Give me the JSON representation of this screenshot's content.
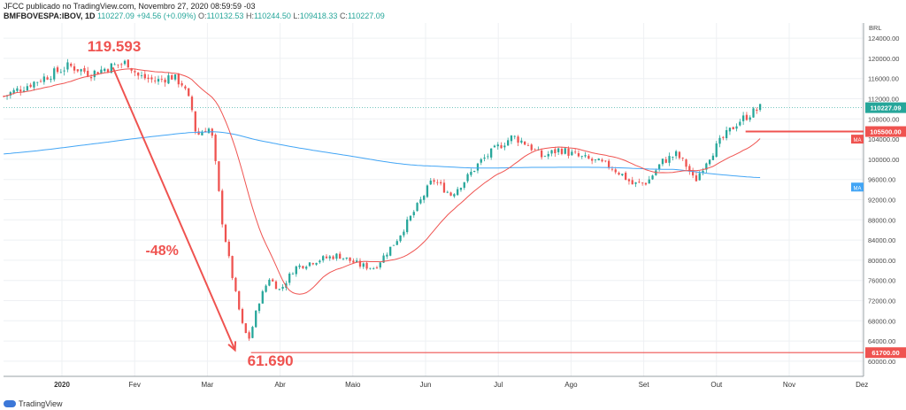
{
  "header": {
    "line1": "JFCC publicado no TradingView.com, Novembro 27, 2020 08:59:59 -03",
    "symbol": "BMFBOVESPA:IBOV, 1D",
    "price": "110227.09",
    "change": "+94.56 (+0.09%)",
    "o_label": "O:",
    "o_val": "110132.53",
    "h_label": "H:",
    "h_val": "110244.50",
    "l_label": "L:",
    "l_val": "109418.33",
    "c_label": "C:",
    "c_val": "110227.09"
  },
  "footer": {
    "brand": "TradingView"
  },
  "chart_data": {
    "type": "candlestick",
    "currency": "BRL",
    "ylim": [
      57000,
      127000
    ],
    "y_ticks": [
      60000,
      64000,
      68000,
      72000,
      76000,
      80000,
      84000,
      88000,
      92000,
      96000,
      100000,
      104000,
      108000,
      112000,
      116000,
      120000,
      124000
    ],
    "y_tick_labels": [
      "60000.00",
      "64000.00",
      "68000.00",
      "72000.00",
      "76000.00",
      "80000.00",
      "84000.00",
      "88000.00",
      "92000.00",
      "96000.00",
      "100000.00",
      "104000.00",
      "108000.00",
      "112000.00",
      "116000.00",
      "120000.00",
      "124000.00"
    ],
    "x_labels": [
      "2020",
      "Fev",
      "Mar",
      "Abr",
      "Maio",
      "Jun",
      "Jul",
      "Ago",
      "Set",
      "Out",
      "Nov",
      "Dez"
    ],
    "x_label_pos": [
      0.0,
      1.0,
      2.0,
      3.0,
      4.0,
      5.0,
      6.0,
      7.0,
      8.0,
      9.0,
      10.0,
      11.0
    ],
    "anchors": [
      [
        -0.8,
        112500
      ],
      [
        -0.5,
        114500
      ],
      [
        -0.2,
        116500
      ],
      [
        0.1,
        118500
      ],
      [
        0.4,
        117000
      ],
      [
        0.7,
        118500
      ],
      [
        0.9,
        119200
      ],
      [
        1.05,
        116500
      ],
      [
        1.3,
        115500
      ],
      [
        1.5,
        116500
      ],
      [
        1.65,
        115000
      ],
      [
        1.78,
        110500
      ],
      [
        1.85,
        104500
      ],
      [
        1.95,
        106000
      ],
      [
        2.05,
        106000
      ],
      [
        2.1,
        100500
      ],
      [
        2.2,
        88000
      ],
      [
        2.3,
        80000
      ],
      [
        2.4,
        72500
      ],
      [
        2.5,
        66000
      ],
      [
        2.58,
        64500
      ],
      [
        2.7,
        71500
      ],
      [
        2.85,
        76500
      ],
      [
        3.0,
        74000
      ],
      [
        3.2,
        78500
      ],
      [
        3.5,
        80000
      ],
      [
        3.8,
        81000
      ],
      [
        4.1,
        79000
      ],
      [
        4.3,
        78500
      ],
      [
        4.6,
        84000
      ],
      [
        4.9,
        91000
      ],
      [
        5.1,
        96000
      ],
      [
        5.35,
        93000
      ],
      [
        5.55,
        96000
      ],
      [
        5.75,
        99500
      ],
      [
        6.0,
        102500
      ],
      [
        6.2,
        104500
      ],
      [
        6.4,
        103000
      ],
      [
        6.6,
        100500
      ],
      [
        6.85,
        102000
      ],
      [
        7.1,
        100500
      ],
      [
        7.35,
        99500
      ],
      [
        7.55,
        98500
      ],
      [
        7.7,
        97000
      ],
      [
        7.85,
        95000
      ],
      [
        8.05,
        95500
      ],
      [
        8.25,
        99500
      ],
      [
        8.45,
        101000
      ],
      [
        8.6,
        98500
      ],
      [
        8.7,
        95500
      ],
      [
        8.85,
        99500
      ],
      [
        9.05,
        103500
      ],
      [
        9.3,
        107500
      ],
      [
        9.6,
        110200
      ]
    ],
    "candles_count": 226,
    "ma_slow_label": "MA",
    "ma_fast_label": "MA",
    "last_price_label": "110227.09",
    "level_labels": [
      "105500.00",
      "61700.00"
    ],
    "level_values": [
      105500,
      61700
    ],
    "annotations": {
      "high": "119.593",
      "low": "61.690",
      "drop": "-48%"
    },
    "colors": {
      "up": "#26a69a",
      "down": "#ef5350",
      "ma_fast": "#ef5350",
      "ma_slow": "#42a5f5",
      "annotation": "#ef5350",
      "last_price": "#26a69a",
      "ma_badge": "#42a5f5"
    }
  }
}
